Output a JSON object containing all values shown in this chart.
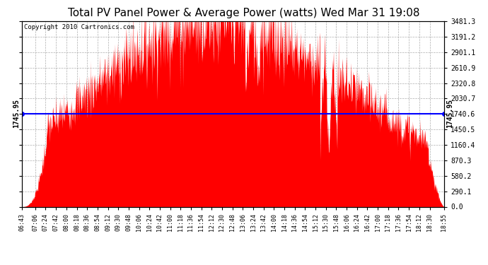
{
  "title": "Total PV Panel Power & Average Power (watts) Wed Mar 31 19:08",
  "copyright": "Copyright 2010 Cartronics.com",
  "average_power": 1745.95,
  "y_max": 3481.3,
  "y_ticks": [
    0.0,
    290.1,
    580.2,
    870.3,
    1160.4,
    1450.5,
    1740.6,
    2030.7,
    2320.8,
    2610.9,
    2901.1,
    3191.2,
    3481.3
  ],
  "x_tick_labels": [
    "06:43",
    "07:06",
    "07:24",
    "07:42",
    "08:00",
    "08:18",
    "08:36",
    "08:54",
    "09:12",
    "09:30",
    "09:48",
    "10:06",
    "10:24",
    "10:42",
    "11:00",
    "11:18",
    "11:36",
    "11:54",
    "12:12",
    "12:30",
    "12:48",
    "13:06",
    "13:24",
    "13:42",
    "14:00",
    "14:18",
    "14:36",
    "14:54",
    "15:12",
    "15:30",
    "15:48",
    "16:06",
    "16:24",
    "16:42",
    "17:00",
    "17:18",
    "17:36",
    "17:54",
    "18:12",
    "18:30",
    "18:55"
  ],
  "fill_color": "#FF0000",
  "avg_line_color": "#0000FF",
  "background_color": "#FFFFFF",
  "plot_bg_color": "#FFFFFF",
  "grid_color": "#999999",
  "title_fontsize": 11,
  "copyright_fontsize": 6.5,
  "avg_label": "1745.95",
  "avg_label_fontsize": 7
}
